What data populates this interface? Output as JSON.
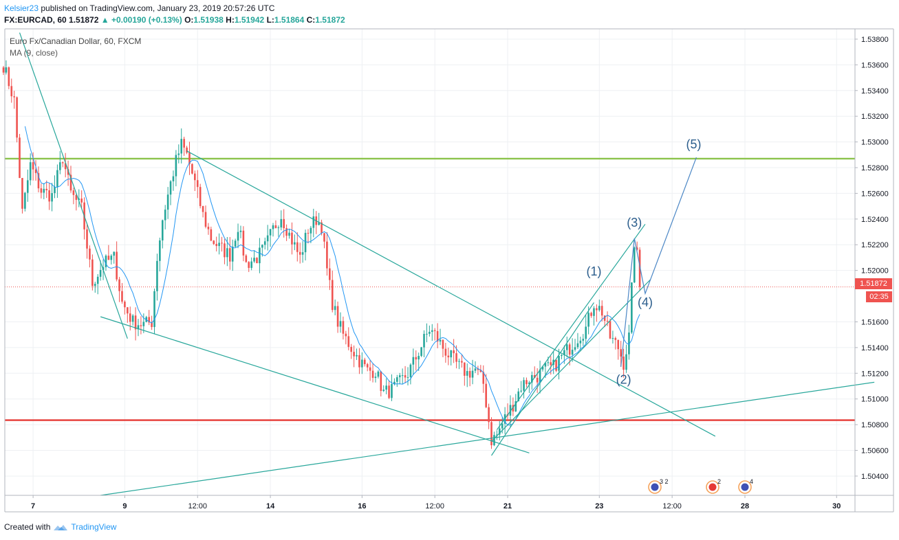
{
  "header": {
    "author": "Kelsier23",
    "published_text": "published on TradingView.com, January 23, 2019 20:57:26 UTC"
  },
  "ohlc": {
    "symbol": "FX:EURCAD, 60",
    "last": "1.51872",
    "change": "▲ +0.00190 (+0.13%)",
    "o_label": "O:",
    "o": "1.51938",
    "h_label": "H:",
    "h": "1.51942",
    "l_label": "L:",
    "l": "1.51864",
    "c_label": "C:",
    "c": "1.51872"
  },
  "legend": {
    "title": "Euro Fx/Canadian Dollar, 60, FXCM",
    "indicator": "MA (9, close)"
  },
  "price_tags": {
    "last_price": "1.51872",
    "countdown": "02:35"
  },
  "event_badges": [
    {
      "count": "3 2"
    },
    {
      "count": "2"
    },
    {
      "count": "4"
    }
  ],
  "footer": {
    "created_with": "Created with",
    "brand": "TradingView"
  },
  "colors": {
    "up": "#26a69a",
    "down": "#ef5350",
    "ma": "#2196f3",
    "trendline": "#26a69a",
    "resistance": "#8bc34a",
    "support": "#e53935",
    "projection": "#4a86c5",
    "wave_label": "#2b5d8c"
  },
  "chart_data": {
    "type": "candlestick",
    "symbol": "FX:EURCAD",
    "timeframe": "60",
    "ylim": [
      1.5025,
      1.5388
    ],
    "y_ticks": [
      "1.53800",
      "1.53600",
      "1.53400",
      "1.53200",
      "1.53000",
      "1.52800",
      "1.52600",
      "1.52400",
      "1.52200",
      "1.52000",
      "1.51600",
      "1.51400",
      "1.51200",
      "1.51000",
      "1.50800",
      "1.50600",
      "1.50400"
    ],
    "x_ticks": [
      {
        "label": "7",
        "bar": 11
      },
      {
        "label": "9",
        "bar": 45
      },
      {
        "label": "12:00",
        "bar": 72
      },
      {
        "label": "14",
        "bar": 99
      },
      {
        "label": "16",
        "bar": 133
      },
      {
        "label": "12:00",
        "bar": 160
      },
      {
        "label": "21",
        "bar": 187
      },
      {
        "label": "23",
        "bar": 221
      },
      {
        "label": "12:00",
        "bar": 248
      },
      {
        "label": "28",
        "bar": 275
      },
      {
        "label": "30",
        "bar": 309
      }
    ],
    "last_bar": 236,
    "last_price": 1.51872,
    "horizontal_levels": [
      {
        "price": 1.5287,
        "role": "resistance"
      },
      {
        "price": 1.50835,
        "role": "support"
      }
    ],
    "trendlines": [
      {
        "from": [
          6,
          1.5385
        ],
        "to": [
          46,
          1.5147
        ]
      },
      {
        "from": [
          68,
          1.5293
        ],
        "to": [
          264,
          1.5071
        ]
      },
      {
        "from": [
          36,
          1.5164
        ],
        "to": [
          195,
          1.5058
        ]
      },
      {
        "from": [
          36,
          1.5025
        ],
        "to": [
          323,
          1.5113
        ]
      },
      {
        "from": [
          181,
          1.5056
        ],
        "to": [
          219,
          1.5175
        ]
      },
      {
        "from": [
          181,
          1.5067
        ],
        "to": [
          240,
          1.5193
        ]
      },
      {
        "from": [
          183,
          1.5076
        ],
        "to": [
          238,
          1.5236
        ]
      }
    ],
    "projection_path": [
      [
        229,
        1.5125
      ],
      [
        234,
        1.5225
      ],
      [
        238,
        1.5182
      ],
      [
        257,
        1.5288
      ]
    ],
    "waves": [
      {
        "label": "(1)",
        "bar": 219,
        "price": 1.5196
      },
      {
        "label": "(2)",
        "bar": 230,
        "price": 1.5112
      },
      {
        "label": "(3)",
        "bar": 234,
        "price": 1.5234
      },
      {
        "label": "(4)",
        "bar": 238,
        "price": 1.5172
      },
      {
        "label": "(5)",
        "bar": 256,
        "price": 1.5295
      }
    ],
    "price_path": [
      [
        0,
        1.536
      ],
      [
        4,
        1.5332
      ],
      [
        7,
        1.5245
      ],
      [
        10,
        1.5282
      ],
      [
        14,
        1.5262
      ],
      [
        18,
        1.5258
      ],
      [
        22,
        1.5288
      ],
      [
        25,
        1.526
      ],
      [
        29,
        1.5248
      ],
      [
        33,
        1.519
      ],
      [
        37,
        1.5205
      ],
      [
        41,
        1.521
      ],
      [
        44,
        1.5175
      ],
      [
        48,
        1.516
      ],
      [
        52,
        1.5158
      ],
      [
        55,
        1.516
      ],
      [
        57,
        1.521
      ],
      [
        59,
        1.524
      ],
      [
        62,
        1.5268
      ],
      [
        64,
        1.5285
      ],
      [
        66,
        1.5298
      ],
      [
        68,
        1.529
      ],
      [
        71,
        1.5268
      ],
      [
        74,
        1.5243
      ],
      [
        77,
        1.5225
      ],
      [
        80,
        1.5218
      ],
      [
        84,
        1.5212
      ],
      [
        87,
        1.5235
      ],
      [
        90,
        1.5205
      ],
      [
        94,
        1.521
      ],
      [
        97,
        1.5218
      ],
      [
        100,
        1.5232
      ],
      [
        103,
        1.5243
      ],
      [
        106,
        1.5228
      ],
      [
        110,
        1.521
      ],
      [
        113,
        1.5232
      ],
      [
        116,
        1.524
      ],
      [
        118,
        1.5235
      ],
      [
        120,
        1.52
      ],
      [
        122,
        1.5175
      ],
      [
        124,
        1.516
      ],
      [
        126,
        1.515
      ],
      [
        129,
        1.514
      ],
      [
        132,
        1.513
      ],
      [
        135,
        1.5122
      ],
      [
        138,
        1.5122
      ],
      [
        141,
        1.5105
      ],
      [
        144,
        1.5107
      ],
      [
        147,
        1.5113
      ],
      [
        150,
        1.512
      ],
      [
        153,
        1.5132
      ],
      [
        156,
        1.5146
      ],
      [
        158,
        1.5154
      ],
      [
        160,
        1.515
      ],
      [
        163,
        1.514
      ],
      [
        166,
        1.5132
      ],
      [
        169,
        1.5125
      ],
      [
        172,
        1.512
      ],
      [
        175,
        1.5123
      ],
      [
        178,
        1.5112
      ],
      [
        181,
        1.5068
      ],
      [
        183,
        1.5072
      ],
      [
        186,
        1.5085
      ],
      [
        189,
        1.5096
      ],
      [
        192,
        1.511
      ],
      [
        195,
        1.5116
      ],
      [
        198,
        1.5118
      ],
      [
        201,
        1.5123
      ],
      [
        204,
        1.5125
      ],
      [
        207,
        1.5133
      ],
      [
        210,
        1.514
      ],
      [
        213,
        1.5148
      ],
      [
        216,
        1.5155
      ],
      [
        219,
        1.5175
      ],
      [
        222,
        1.5168
      ],
      [
        225,
        1.5148
      ],
      [
        228,
        1.514
      ],
      [
        230,
        1.5128
      ],
      [
        232,
        1.5148
      ],
      [
        234,
        1.5222
      ],
      [
        236,
        1.52
      ],
      [
        237,
        1.51872
      ]
    ]
  }
}
